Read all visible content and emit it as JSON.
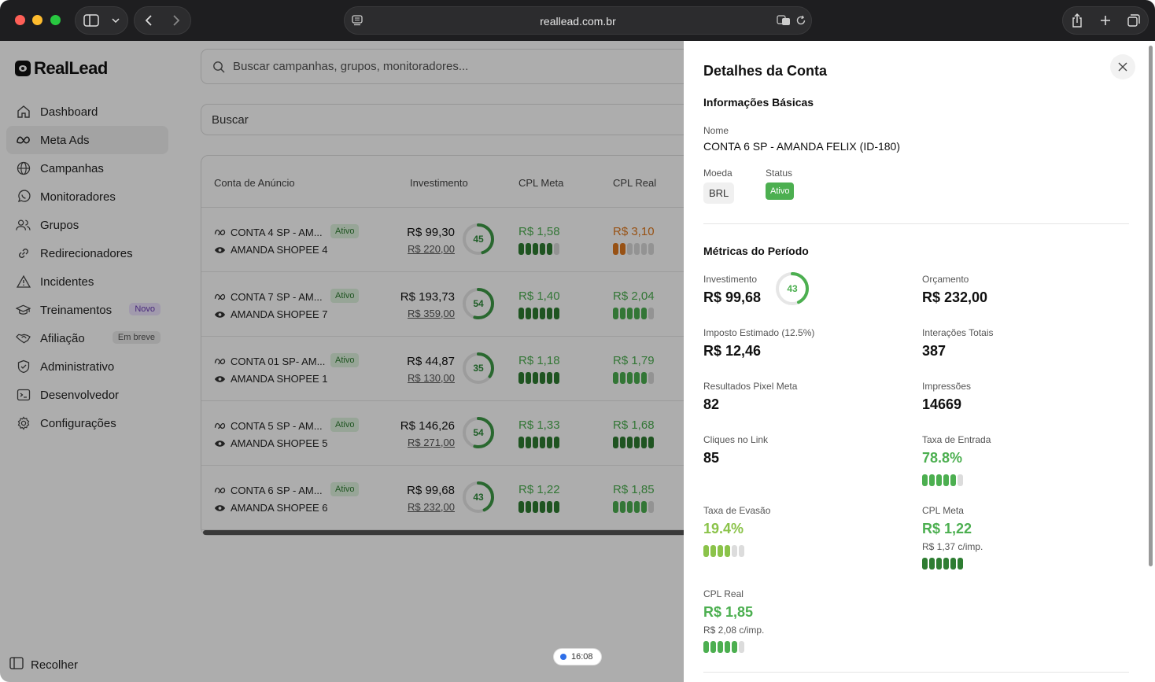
{
  "browser": {
    "url": "reallead.com.br"
  },
  "app": {
    "brand": "RealLead"
  },
  "sidebar": {
    "items": [
      {
        "label": "Dashboard"
      },
      {
        "label": "Meta Ads"
      },
      {
        "label": "Campanhas"
      },
      {
        "label": "Monitoradores"
      },
      {
        "label": "Grupos"
      },
      {
        "label": "Redirecionadores"
      },
      {
        "label": "Incidentes"
      },
      {
        "label": "Treinamentos",
        "badge": "Novo"
      },
      {
        "label": "Afiliação",
        "badge": "Em breve"
      },
      {
        "label": "Administrativo"
      },
      {
        "label": "Desenvolvedor"
      },
      {
        "label": "Configurações"
      }
    ],
    "collapse_label": "Recolher"
  },
  "main": {
    "search_placeholder": "Buscar campanhas, grupos, monitoradores...",
    "filter_placeholder": "Buscar",
    "columns": [
      "Conta de Anúncio",
      "Investimento",
      "CPL Meta",
      "CPL Real"
    ],
    "rows": [
      {
        "account": "CONTA 4 SP - AM...",
        "monitor": "AMANDA SHOPEE 4",
        "status": "Ativo",
        "invest": "R$ 99,30",
        "budget": "R$ 220,00",
        "pct": 45,
        "cpl_meta": "R$ 1,58",
        "cpl_meta_level": 5,
        "cpl_real": "R$ 3,10",
        "cpl_real_level": 2
      },
      {
        "account": "CONTA 7 SP - AM...",
        "monitor": "AMANDA SHOPEE 7",
        "status": "Ativo",
        "invest": "R$ 193,73",
        "budget": "R$ 359,00",
        "pct": 54,
        "cpl_meta": "R$ 1,40",
        "cpl_meta_level": 6,
        "cpl_real": "R$ 2,04",
        "cpl_real_level": 5
      },
      {
        "account": "CONTA 01 SP- AM...",
        "monitor": "AMANDA SHOPEE 1",
        "status": "Ativo",
        "invest": "R$ 44,87",
        "budget": "R$ 130,00",
        "pct": 35,
        "cpl_meta": "R$ 1,18",
        "cpl_meta_level": 6,
        "cpl_real": "R$ 1,79",
        "cpl_real_level": 5
      },
      {
        "account": "CONTA 5 SP - AM...",
        "monitor": "AMANDA SHOPEE 5",
        "status": "Ativo",
        "invest": "R$ 146,26",
        "budget": "R$ 271,00",
        "pct": 54,
        "cpl_meta": "R$ 1,33",
        "cpl_meta_level": 6,
        "cpl_real": "R$ 1,68",
        "cpl_real_level": 6
      },
      {
        "account": "CONTA 6 SP - AM...",
        "monitor": "AMANDA SHOPEE 6",
        "status": "Ativo",
        "invest": "R$ 99,68",
        "budget": "R$ 232,00",
        "pct": 43,
        "cpl_meta": "R$ 1,22",
        "cpl_meta_level": 6,
        "cpl_real": "R$ 1,85",
        "cpl_real_level": 5
      }
    ]
  },
  "clock": "16:08",
  "panel": {
    "title": "Detalhes da Conta",
    "basic_title": "Informações Básicas",
    "name_label": "Nome",
    "name_value": "CONTA 6 SP - AMANDA FELIX (ID-180)",
    "currency_label": "Moeda",
    "currency_value": "BRL",
    "status_label": "Status",
    "status_value": "Ativo",
    "metrics_title": "Métricas do Período",
    "metrics": {
      "invest_label": "Investimento",
      "invest_value": "R$ 99,68",
      "invest_pct": 43,
      "budget_label": "Orçamento",
      "budget_value": "R$ 232,00",
      "tax_label": "Imposto Estimado (12.5%)",
      "tax_value": "R$ 12,46",
      "interactions_label": "Interações Totais",
      "interactions_value": "387",
      "pixel_label": "Resultados Pixel Meta",
      "pixel_value": "82",
      "impressions_label": "Impressões",
      "impressions_value": "14669",
      "clicks_label": "Cliques no Link",
      "clicks_value": "85",
      "entry_label": "Taxa de Entrada",
      "entry_value": "78.8%",
      "entry_level": 5,
      "evasion_label": "Taxa de Evasão",
      "evasion_value": "19.4%",
      "evasion_level": 4,
      "cplmeta_label": "CPL Meta",
      "cplmeta_value": "R$ 1,22",
      "cplmeta_sub": "R$ 1,37 c/imp.",
      "cplmeta_level": 6,
      "cplreal_label": "CPL Real",
      "cplreal_value": "R$ 1,85",
      "cplreal_sub": "R$ 2,08 c/imp.",
      "cplreal_level": 5
    }
  },
  "colors": {
    "green": "#4caf50",
    "dark_green": "#2e7d32",
    "orange": "#e07a1f",
    "lime": "#8bc34a"
  }
}
